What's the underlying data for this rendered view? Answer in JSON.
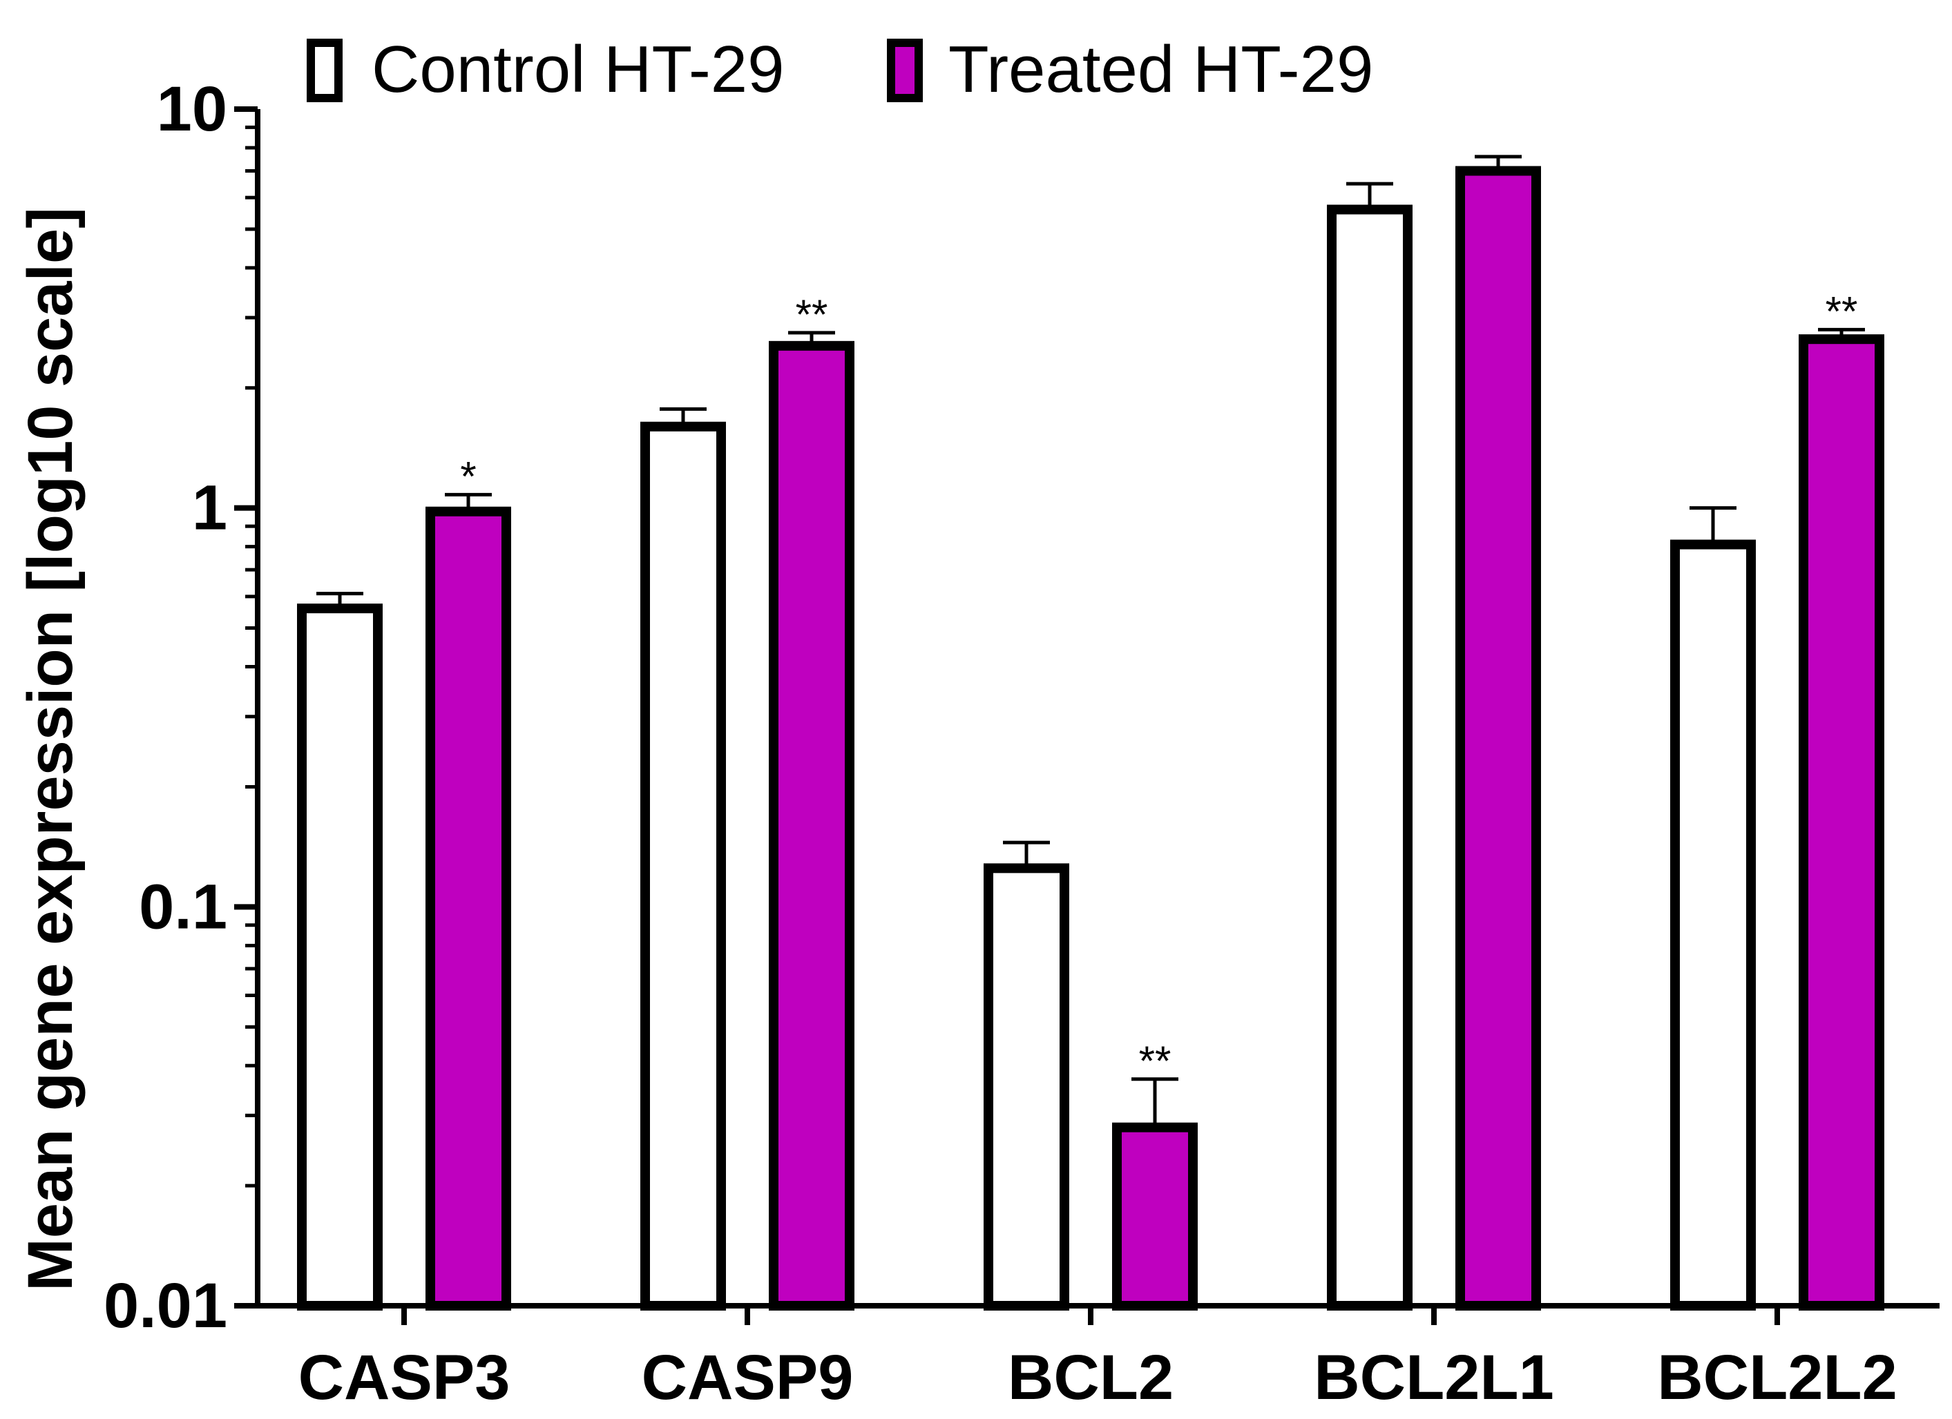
{
  "chart_data": {
    "type": "bar",
    "scale": "log10",
    "ylabel": "Mean gene expression [log10 scale]",
    "xlabel": "",
    "ylim": [
      0.01,
      10
    ],
    "yticks": [
      {
        "value": 0.01,
        "label": "0.01"
      },
      {
        "value": 0.1,
        "label": "0.1"
      },
      {
        "value": 1,
        "label": "1"
      },
      {
        "value": 10,
        "label": "10"
      }
    ],
    "categories": [
      "CASP3",
      "CASP9",
      "BCL2",
      "BCL2L1",
      "BCL2L2"
    ],
    "series": [
      {
        "name": "Control HT-29",
        "color": "#ffffff",
        "values": [
          0.56,
          1.6,
          0.125,
          5.6,
          0.81
        ],
        "errors": [
          0.61,
          1.77,
          0.145,
          6.5,
          1.0
        ],
        "significance": [
          "",
          "",
          "",
          "",
          ""
        ]
      },
      {
        "name": "Treated HT-29",
        "color": "#bf00bf",
        "values": [
          0.98,
          2.55,
          0.028,
          7.0,
          2.65
        ],
        "errors": [
          1.08,
          2.75,
          0.037,
          7.6,
          2.8
        ],
        "significance": [
          "*",
          "**",
          "**",
          "",
          "**"
        ]
      }
    ],
    "legend": "top"
  }
}
